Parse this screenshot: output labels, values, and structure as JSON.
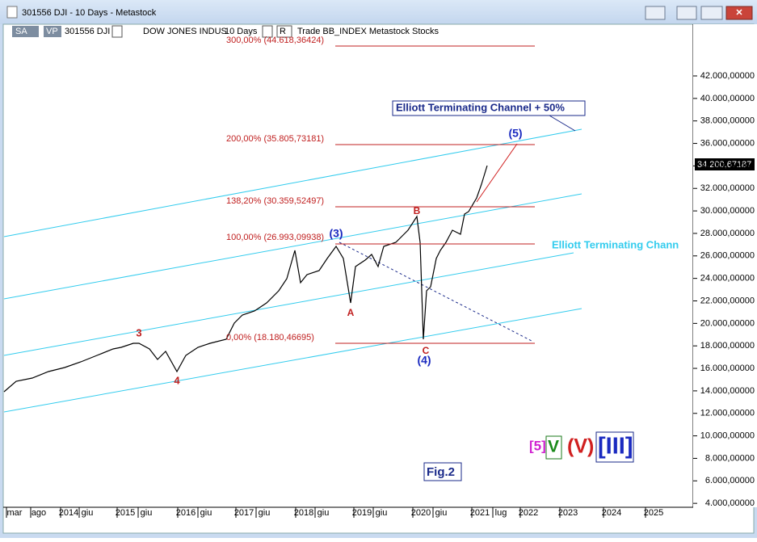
{
  "window": {
    "title": "301556 DJI - 10 Days - Metastock"
  },
  "toolbar": {
    "sa": "SA",
    "vp": "VP",
    "symbol": "301556 DJI",
    "name": "DOW JONES INDUS",
    "period": "10 Days",
    "r": "R",
    "info": "Trade  BB_INDEX  Metastock  Stocks"
  },
  "y_axis": {
    "labels": [
      "42.000,00000",
      "40.000,00000",
      "38.000,00000",
      "36.000,00000",
      "34.000,00000",
      "32.000,00000",
      "30.000,00000",
      "28.000,00000",
      "26.000,00000",
      "24.000,00000",
      "22.000,00000",
      "20.000,00000",
      "18.000,00000",
      "16.000,00000",
      "14.000,00000",
      "12.000,00000",
      "10.000,00000",
      "8.000,00000",
      "6.000,00000",
      "4.000,00000"
    ],
    "last_price": "34.200,67187"
  },
  "x_axis": {
    "labels": [
      "mar",
      "ago",
      "2014",
      "giu",
      "2015",
      "giu",
      "2016",
      "giu",
      "2017",
      "giu",
      "2018",
      "giu",
      "2019",
      "giu",
      "2020",
      "giu",
      "2021",
      "lug",
      "2022",
      "2023",
      "2024",
      "2025"
    ]
  },
  "fib_levels": [
    "300,00% (44.618,36424)",
    "200,00% (35.805,73181)",
    "138,20% (30.359,52497)",
    "100,00% (26.993,09938)",
    "0,00% (18.180,46695)"
  ],
  "waves": {
    "w3": "3",
    "w4": "4",
    "p3": "(3)",
    "a": "A",
    "b": "B",
    "c": "C",
    "p4": "(4)",
    "p5": "(5)"
  },
  "annotations": {
    "channel50": "Elliott Terminating Channel + 50%",
    "channel": "Elliott Terminating Chann",
    "fig": "Fig.2",
    "deg5": "[5]",
    "degV": "V",
    "degPV": "(V)",
    "degIII": "[III]"
  }
}
